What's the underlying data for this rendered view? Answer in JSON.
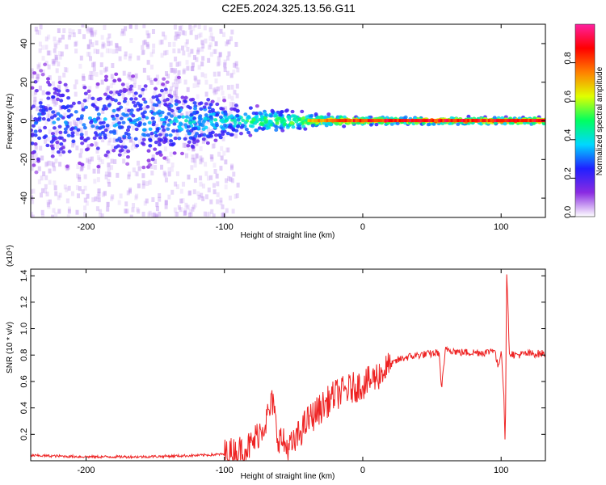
{
  "title": "C2E5.2024.325.13.56.G11",
  "colors": {
    "snr_line": "#ee2222",
    "axis": "#000000"
  },
  "chart_data": [
    {
      "type": "heatmap",
      "title": "C2E5.2024.325.13.56.G11",
      "xlabel": "Height of straight line (km)",
      "ylabel": "Frequency (Hz)",
      "xlim": [
        -240,
        132
      ],
      "ylim": [
        -50,
        50
      ],
      "xticks": [
        -200,
        -100,
        0,
        100
      ],
      "yticks": [
        -40,
        -20,
        0,
        20,
        40
      ],
      "colorbar": {
        "label": "Normalized spectral amplitude",
        "range": [
          0,
          1
        ],
        "ticks": [
          "0.0",
          "0.2",
          "0.4",
          "0.6",
          "0.8"
        ],
        "tick_values": [
          0.0,
          0.2,
          0.4,
          0.6,
          0.8
        ],
        "colormap": [
          "#ffffff",
          "#8a2be2",
          "#2020ff",
          "#00d8ff",
          "#00ff60",
          "#e0ff00",
          "#ff8000",
          "#ff0000",
          "#ff20a0"
        ]
      },
      "description_points": [
        {
          "x": -220,
          "spread_hz": 30,
          "peak": 0.35
        },
        {
          "x": -150,
          "spread_hz": 25,
          "peak": 0.4
        },
        {
          "x": -95,
          "spread_hz": 10,
          "peak": 0.5
        },
        {
          "x": -50,
          "spread_hz": 5,
          "peak": 0.7
        },
        {
          "x": 0,
          "spread_hz": 2,
          "peak": 0.95
        },
        {
          "x": 100,
          "spread_hz": 2,
          "peak": 0.95
        }
      ]
    },
    {
      "type": "line",
      "xlabel": "Height of straight line (km)",
      "ylabel": "SNR (10 * v/v)",
      "y_multiplier": "(x10⁴)",
      "xlim": [
        -240,
        132
      ],
      "ylim": [
        0,
        1.45
      ],
      "xticks": [
        -200,
        -100,
        0,
        100
      ],
      "yticks": [
        0.2,
        0.4,
        0.6,
        0.8,
        1.0,
        1.2,
        1.4
      ],
      "series": [
        {
          "points": [
            [
              -240,
              0.04
            ],
            [
              -220,
              0.035
            ],
            [
              -200,
              0.03
            ],
            [
              -180,
              0.03
            ],
            [
              -160,
              0.03
            ],
            [
              -140,
              0.035
            ],
            [
              -120,
              0.04
            ],
            [
              -100,
              0.05
            ],
            [
              -90,
              0.07
            ],
            [
              -80,
              0.12
            ],
            [
              -75,
              0.22
            ],
            [
              -70,
              0.3
            ],
            [
              -65,
              0.45
            ],
            [
              -62,
              0.2
            ],
            [
              -55,
              0.1
            ],
            [
              -50,
              0.12
            ],
            [
              -45,
              0.22
            ],
            [
              -40,
              0.3
            ],
            [
              -35,
              0.35
            ],
            [
              -30,
              0.4
            ],
            [
              -25,
              0.45
            ],
            [
              -20,
              0.5
            ],
            [
              -15,
              0.52
            ],
            [
              -10,
              0.54
            ],
            [
              -5,
              0.56
            ],
            [
              0,
              0.58
            ],
            [
              5,
              0.6
            ],
            [
              10,
              0.64
            ],
            [
              15,
              0.68
            ],
            [
              20,
              0.72
            ],
            [
              25,
              0.76
            ],
            [
              30,
              0.78
            ],
            [
              40,
              0.8
            ],
            [
              50,
              0.81
            ],
            [
              55,
              0.82
            ],
            [
              57,
              0.55
            ],
            [
              60,
              0.85
            ],
            [
              70,
              0.82
            ],
            [
              80,
              0.82
            ],
            [
              90,
              0.82
            ],
            [
              95,
              0.85
            ],
            [
              98,
              0.7
            ],
            [
              100,
              0.85
            ],
            [
              102,
              0.5
            ],
            [
              103,
              0.1
            ],
            [
              104,
              1.44
            ],
            [
              106,
              0.82
            ],
            [
              110,
              0.8
            ],
            [
              120,
              0.81
            ],
            [
              132,
              0.81
            ]
          ]
        }
      ]
    }
  ]
}
